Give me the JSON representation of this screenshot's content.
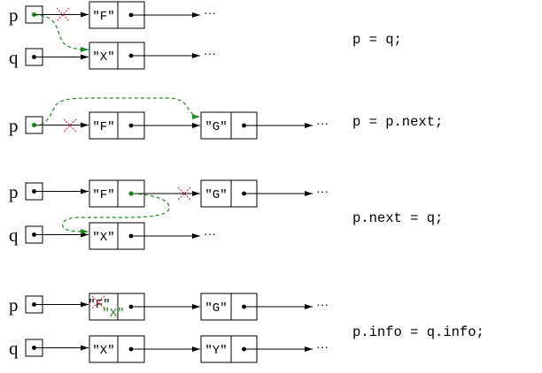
{
  "colors": {
    "stroke": "#000000",
    "changed_pointer": "#1f8a1f",
    "removed_mark": "#e0303a"
  },
  "vars": {
    "p": "p",
    "q": "q"
  },
  "cells": {
    "F": "\"F\"",
    "X": "\"X\"",
    "G": "\"G\"",
    "Y": "\"Y\"",
    "X_new": "\"X\""
  },
  "continuation": "···",
  "steps": [
    {
      "code": "p = q;"
    },
    {
      "code": "p = p.next;"
    },
    {
      "code": "p.next = q;"
    },
    {
      "code": "p.info = q.info;"
    }
  ]
}
